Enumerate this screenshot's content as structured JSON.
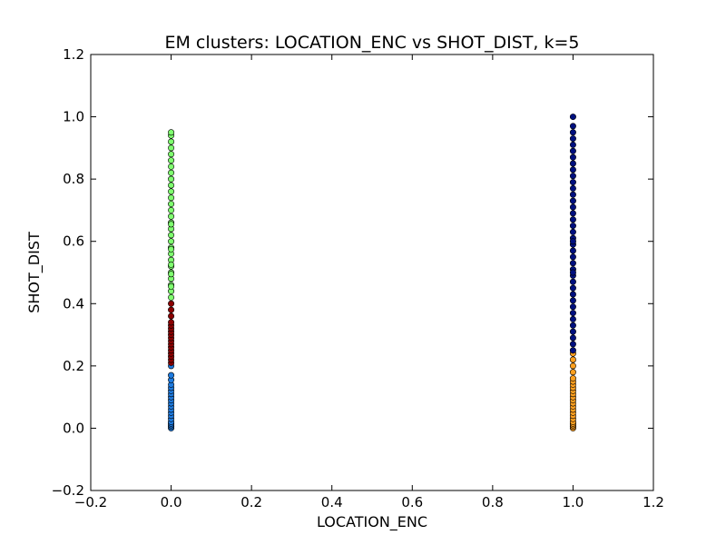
{
  "chart_data": {
    "type": "scatter",
    "title": "EM clusters: LOCATION_ENC vs SHOT_DIST, k=5",
    "xlabel": "LOCATION_ENC",
    "ylabel": "SHOT_DIST",
    "xlim": [
      -0.2,
      1.2
    ],
    "ylim": [
      -0.2,
      1.2
    ],
    "xticks": [
      -0.2,
      0.0,
      0.2,
      0.4,
      0.6,
      0.8,
      1.0,
      1.2
    ],
    "yticks": [
      -0.2,
      0.0,
      0.2,
      0.4,
      0.6,
      0.8,
      1.0,
      1.2
    ],
    "grid": false,
    "series": [
      {
        "color": "#1e7be0",
        "x": [
          0,
          0,
          0,
          0,
          0,
          0,
          0,
          0,
          0,
          0,
          0,
          0,
          0,
          0,
          0,
          0,
          0,
          0,
          0,
          0
        ],
        "y": [
          0.0,
          0.005,
          0.01,
          0.015,
          0.02,
          0.03,
          0.04,
          0.05,
          0.06,
          0.07,
          0.08,
          0.09,
          0.1,
          0.11,
          0.12,
          0.13,
          0.14,
          0.155,
          0.17,
          0.2
        ]
      },
      {
        "color": "#8b0000",
        "x": [
          0,
          0,
          0,
          0,
          0,
          0,
          0,
          0,
          0,
          0,
          0,
          0,
          0,
          0,
          0,
          0,
          0
        ],
        "y": [
          0.21,
          0.22,
          0.23,
          0.24,
          0.25,
          0.26,
          0.27,
          0.28,
          0.29,
          0.3,
          0.31,
          0.32,
          0.33,
          0.34,
          0.36,
          0.38,
          0.4
        ]
      },
      {
        "color": "#7fff6f",
        "x": [
          0,
          0,
          0,
          0,
          0,
          0,
          0,
          0,
          0,
          0,
          0,
          0,
          0,
          0,
          0,
          0,
          0,
          0,
          0,
          0,
          0,
          0,
          0,
          0,
          0,
          0,
          0,
          0,
          0,
          0,
          0,
          0,
          0
        ],
        "y": [
          0.42,
          0.44,
          0.46,
          0.48,
          0.5,
          0.52,
          0.54,
          0.56,
          0.58,
          0.6,
          0.62,
          0.64,
          0.66,
          0.68,
          0.7,
          0.72,
          0.74,
          0.76,
          0.78,
          0.8,
          0.82,
          0.84,
          0.86,
          0.88,
          0.9,
          0.92,
          0.94,
          0.95,
          0.655,
          0.575,
          0.495,
          0.525,
          0.455
        ]
      },
      {
        "color": "#ffa020",
        "x": [
          1,
          1,
          1,
          1,
          1,
          1,
          1,
          1,
          1,
          1,
          1,
          1,
          1,
          1,
          1,
          1,
          1,
          1,
          1,
          1,
          1,
          1,
          1
        ],
        "y": [
          0.0,
          0.005,
          0.01,
          0.015,
          0.02,
          0.03,
          0.04,
          0.05,
          0.06,
          0.07,
          0.08,
          0.09,
          0.1,
          0.11,
          0.12,
          0.13,
          0.14,
          0.15,
          0.16,
          0.18,
          0.2,
          0.22,
          0.24
        ]
      },
      {
        "color": "#00107f",
        "x": [
          1,
          1,
          1,
          1,
          1,
          1,
          1,
          1,
          1,
          1,
          1,
          1,
          1,
          1,
          1,
          1,
          1,
          1,
          1,
          1,
          1,
          1,
          1,
          1,
          1,
          1,
          1,
          1,
          1,
          1,
          1,
          1,
          1,
          1,
          1,
          1,
          1,
          1,
          1,
          1
        ],
        "y": [
          0.25,
          0.27,
          0.29,
          0.31,
          0.33,
          0.35,
          0.37,
          0.39,
          0.41,
          0.43,
          0.45,
          0.47,
          0.49,
          0.51,
          0.53,
          0.55,
          0.57,
          0.59,
          0.61,
          0.63,
          0.65,
          0.67,
          0.69,
          0.71,
          0.73,
          0.75,
          0.77,
          0.79,
          0.81,
          0.83,
          0.85,
          0.87,
          0.89,
          0.91,
          0.93,
          0.95,
          0.97,
          1.0,
          0.6,
          0.5
        ]
      }
    ]
  }
}
